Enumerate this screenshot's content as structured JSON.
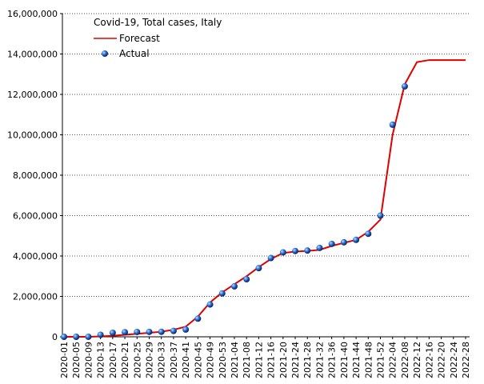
{
  "chart_data": {
    "type": "line",
    "title": "Covid-19, Total cases, Italy",
    "categories": [
      "2020-01",
      "2020-05",
      "2020-09",
      "2020-13",
      "2020-17",
      "2020-21",
      "2020-25",
      "2020-29",
      "2020-33",
      "2020-37",
      "2020-41",
      "2020-45",
      "2020-49",
      "2020-53",
      "2021-04",
      "2021-08",
      "2021-12",
      "2021-16",
      "2021-20",
      "2021-24",
      "2021-28",
      "2021-32",
      "2021-36",
      "2021-40",
      "2021-44",
      "2021-48",
      "2021-52",
      "2022-04",
      "2022-08",
      "2022-12",
      "2022-16",
      "2022-20",
      "2022-24",
      "2022-28"
    ],
    "series": [
      {
        "name": "Forecast",
        "color": "#e00000",
        "style": "line",
        "values": [
          0,
          0,
          0,
          20000,
          50000,
          100000,
          150000,
          200000,
          250000,
          350000,
          500000,
          1000000,
          1700000,
          2200000,
          2600000,
          3000000,
          3450000,
          3850000,
          4150000,
          4220000,
          4250000,
          4300000,
          4500000,
          4650000,
          4800000,
          5200000,
          5800000,
          10000000,
          12500000,
          13600000,
          13700000,
          13700000,
          13700000,
          13700000
        ]
      },
      {
        "name": "Actual",
        "color": "#2a6fd6",
        "style": "markers",
        "values": [
          0,
          0,
          1000,
          100000,
          200000,
          230000,
          240000,
          245000,
          250000,
          290000,
          360000,
          900000,
          1600000,
          2150000,
          2500000,
          2850000,
          3400000,
          3900000,
          4180000,
          4250000,
          4270000,
          4400000,
          4600000,
          4680000,
          4800000,
          5100000,
          6000000,
          10500000,
          12400000,
          null,
          null,
          null,
          null,
          null
        ]
      }
    ],
    "ylim": [
      0,
      16000000
    ],
    "yticks": [
      {
        "value": 0,
        "label": "0"
      },
      {
        "value": 2000000,
        "label": "2,000,000"
      },
      {
        "value": 4000000,
        "label": "4,000,000"
      },
      {
        "value": 6000000,
        "label": "6,000,000"
      },
      {
        "value": 8000000,
        "label": "8,000,000"
      },
      {
        "value": 10000000,
        "label": "10,000,000"
      },
      {
        "value": 12000000,
        "label": "12,000,000"
      },
      {
        "value": 14000000,
        "label": "14,000,000"
      },
      {
        "value": 16000000,
        "label": "16,000,000"
      }
    ],
    "grid": true,
    "legend": "upper-left"
  }
}
